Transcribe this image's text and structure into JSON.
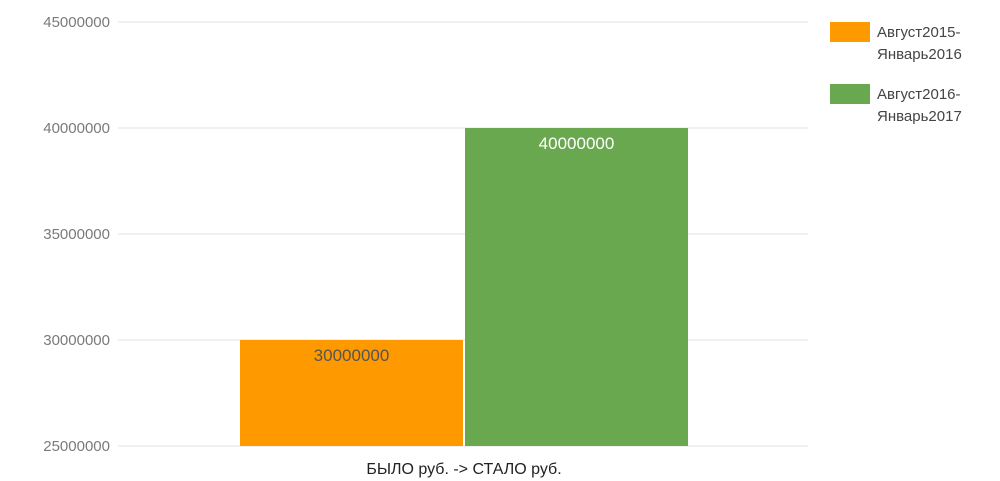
{
  "chart_data": {
    "type": "bar",
    "title": "",
    "xlabel": "",
    "ylabel": "",
    "categories": [
      "БЫЛО руб. -> СТАЛО руб."
    ],
    "series": [
      {
        "name": "Август2015-Январь2016",
        "legend_lines": [
          "Август2015-",
          "Январь2016"
        ],
        "values": [
          30000000
        ],
        "color": "#ff9900",
        "label_color": "#555555"
      },
      {
        "name": "Август2016-Январь2017",
        "legend_lines": [
          "Август2016-",
          "Январь2017"
        ],
        "values": [
          40000000
        ],
        "color": "#6aa84f",
        "label_color": "#ffffff"
      }
    ],
    "ylim": [
      25000000,
      45000000
    ],
    "yticks": [
      25000000,
      30000000,
      35000000,
      40000000,
      45000000
    ],
    "grid": true,
    "legend_position": "right",
    "data_labels": true
  }
}
